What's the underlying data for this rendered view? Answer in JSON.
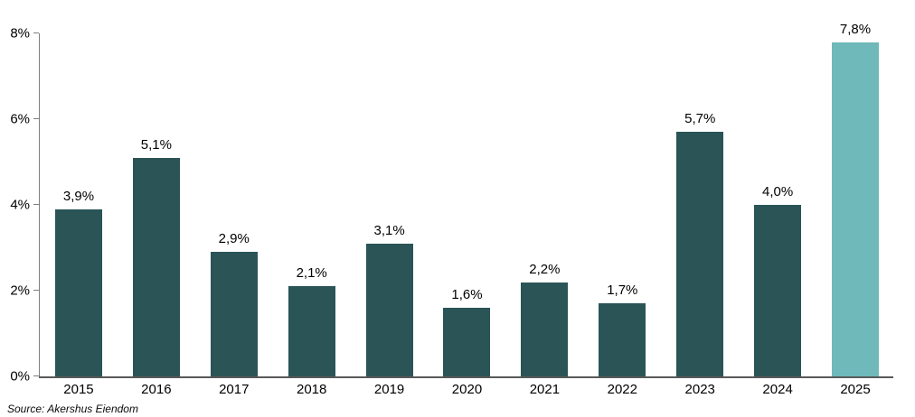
{
  "chart_data": {
    "type": "bar",
    "title": "",
    "categories": [
      "2015",
      "2016",
      "2017",
      "2018",
      "2019",
      "2020",
      "2021",
      "2022",
      "2023",
      "2024",
      "2025"
    ],
    "values": [
      3.9,
      5.1,
      2.9,
      2.1,
      3.1,
      1.6,
      2.2,
      1.7,
      5.7,
      4.0,
      7.8
    ],
    "value_labels": [
      "3,9%",
      "5,1%",
      "2,9%",
      "2,1%",
      "3,1%",
      "1,6%",
      "2,2%",
      "1,7%",
      "5,7%",
      "4,0%",
      "7,8%"
    ],
    "ylim": [
      0,
      8
    ],
    "yticks": [
      {
        "value": 0,
        "label": "0%"
      },
      {
        "value": 2,
        "label": "2%"
      },
      {
        "value": 4,
        "label": "4%"
      },
      {
        "value": 6,
        "label": "6%"
      },
      {
        "value": 8,
        "label": "8%"
      }
    ],
    "grid": false,
    "legend": null,
    "xlabel": "",
    "ylabel": "",
    "bar_color": "#2A5456",
    "highlight_color": "#6FB9BA",
    "highlight_index": 10,
    "axis_color": "#7f7f7f",
    "source_note": "Source: Akershus Eiendom"
  }
}
